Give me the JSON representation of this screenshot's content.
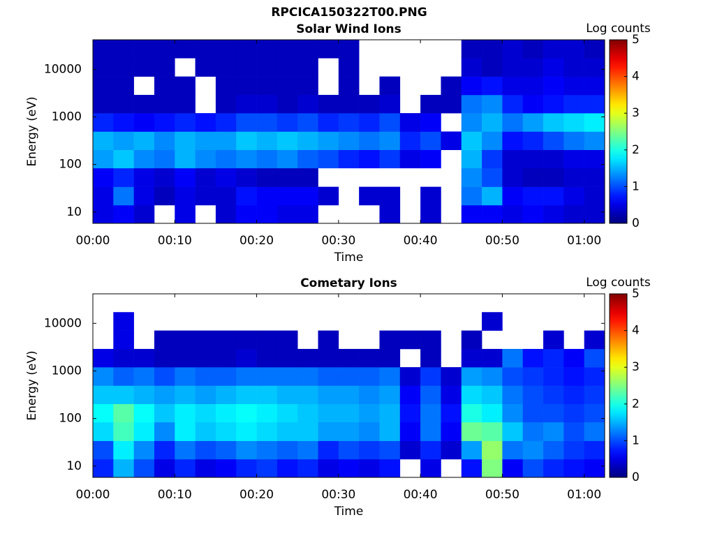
{
  "title": "RPCICA150322T00.PNG",
  "chart_data": [
    {
      "type": "heatmap",
      "title": "Solar Wind Ions",
      "xlabel": "Time",
      "ylabel": "Energy (eV)",
      "log_y": true,
      "colormap": "jet",
      "colorbar_label": "Log counts",
      "clim": [
        0,
        5
      ],
      "cticks": [
        0,
        1,
        2,
        3,
        4,
        5
      ],
      "xlim": [
        0,
        62.5
      ],
      "ylim": [
        5.8,
        41700
      ],
      "xticks": [
        {
          "value": 0,
          "label": "00:00"
        },
        {
          "value": 10,
          "label": "00:10"
        },
        {
          "value": 20,
          "label": "00:20"
        },
        {
          "value": 30,
          "label": "00:30"
        },
        {
          "value": 40,
          "label": "00:40"
        },
        {
          "value": 50,
          "label": "00:50"
        },
        {
          "value": 60,
          "label": "01:00"
        }
      ],
      "yticks": [
        10,
        100,
        1000,
        10000
      ],
      "xbins": [
        0,
        2.5,
        5,
        7.5,
        10,
        12.5,
        15,
        17.5,
        20,
        22.5,
        25,
        27.5,
        30,
        32.5,
        35,
        37.5,
        40,
        42.5,
        45,
        47.5,
        50,
        52.5,
        55,
        57.5,
        60,
        62.5
      ],
      "ybins": [
        5.8,
        14,
        34,
        84,
        203,
        493,
        1200,
        2900,
        7060,
        17200,
        41700
      ],
      "z": [
        [
          0.5,
          0.6,
          0.4,
          null,
          0.5,
          null,
          0.4,
          0.6,
          0.6,
          0.5,
          0.5,
          null,
          null,
          null,
          0.4,
          null,
          0.4,
          null,
          0.6,
          0.6,
          0.5,
          0.6,
          0.5,
          0.4,
          0.4
        ],
        [
          0.5,
          1.2,
          0.5,
          0.3,
          0.5,
          0.4,
          0.4,
          0.7,
          0.6,
          0.6,
          0.6,
          0.4,
          null,
          0.4,
          0.4,
          null,
          0.4,
          null,
          1.2,
          1.5,
          0.6,
          0.7,
          0.7,
          0.5,
          0.4
        ],
        [
          0.6,
          0.8,
          0.5,
          0.4,
          0.6,
          0.4,
          0.5,
          0.4,
          0.3,
          0.3,
          0.3,
          null,
          null,
          null,
          null,
          null,
          null,
          null,
          1.3,
          1.0,
          0.4,
          0.3,
          0.3,
          0.4,
          0.4
        ],
        [
          1.4,
          1.6,
          1.3,
          1.2,
          1.5,
          1.3,
          1.2,
          1.3,
          1.2,
          1.3,
          1.1,
          1.0,
          0.8,
          0.7,
          0.9,
          0.5,
          0.6,
          null,
          1.5,
          0.9,
          0.4,
          0.4,
          0.4,
          0.5,
          0.5
        ],
        [
          1.5,
          1.4,
          1.5,
          1.3,
          1.5,
          1.4,
          1.4,
          1.6,
          1.5,
          1.6,
          1.5,
          1.4,
          1.3,
          1.2,
          1.3,
          0.8,
          1.0,
          0.5,
          1.6,
          1.3,
          0.7,
          0.8,
          1.0,
          1.2,
          1.3
        ],
        [
          0.8,
          0.7,
          0.6,
          0.7,
          0.8,
          0.7,
          0.8,
          1.0,
          1.0,
          0.9,
          1.0,
          0.8,
          0.9,
          0.8,
          1.0,
          0.5,
          0.6,
          null,
          1.3,
          1.5,
          1.2,
          1.4,
          1.6,
          1.7,
          1.8
        ],
        [
          0.3,
          0.3,
          0.3,
          0.3,
          0.3,
          null,
          0.3,
          0.4,
          0.4,
          0.3,
          0.4,
          0.3,
          0.3,
          0.3,
          0.4,
          null,
          0.3,
          0.3,
          1.2,
          1.3,
          0.8,
          0.6,
          0.7,
          0.8,
          0.8
        ],
        [
          0.3,
          0.3,
          null,
          0.3,
          0.3,
          null,
          0.3,
          0.3,
          0.3,
          0.3,
          0.3,
          null,
          0.3,
          null,
          0.3,
          null,
          null,
          0.3,
          0.6,
          0.7,
          0.5,
          0.5,
          0.6,
          0.5,
          0.5
        ],
        [
          0.3,
          0.3,
          0.3,
          0.3,
          null,
          0.3,
          0.3,
          0.3,
          0.3,
          0.3,
          0.3,
          null,
          0.3,
          null,
          null,
          null,
          null,
          null,
          0.4,
          0.3,
          0.4,
          0.4,
          0.5,
          0.4,
          0.4
        ],
        [
          0.3,
          0.3,
          0.3,
          0.3,
          0.3,
          0.3,
          0.3,
          0.3,
          0.3,
          0.3,
          0.3,
          0.3,
          0.3,
          null,
          null,
          null,
          null,
          null,
          0.3,
          0.3,
          0.4,
          0.3,
          0.4,
          0.4,
          0.3
        ]
      ]
    },
    {
      "type": "heatmap",
      "title": "Cometary Ions",
      "xlabel": "Time",
      "ylabel": "Energy (eV)",
      "log_y": true,
      "colormap": "jet",
      "colorbar_label": "Log counts",
      "clim": [
        0,
        5
      ],
      "cticks": [
        0,
        1,
        2,
        3,
        4,
        5
      ],
      "xlim": [
        0,
        62.5
      ],
      "ylim": [
        5.8,
        41700
      ],
      "xticks": [
        {
          "value": 0,
          "label": "00:00"
        },
        {
          "value": 10,
          "label": "00:10"
        },
        {
          "value": 20,
          "label": "00:20"
        },
        {
          "value": 30,
          "label": "00:30"
        },
        {
          "value": 40,
          "label": "00:40"
        },
        {
          "value": 50,
          "label": "00:50"
        },
        {
          "value": 60,
          "label": "01:00"
        }
      ],
      "yticks": [
        10,
        100,
        1000,
        10000
      ],
      "xbins": [
        0,
        2.5,
        5,
        7.5,
        10,
        12.5,
        15,
        17.5,
        20,
        22.5,
        25,
        27.5,
        30,
        32.5,
        35,
        37.5,
        40,
        42.5,
        45,
        47.5,
        50,
        52.5,
        55,
        57.5,
        60,
        62.5
      ],
      "ybins": [
        5.8,
        14,
        34,
        84,
        203,
        493,
        1200,
        2900,
        7060,
        17200,
        41700
      ],
      "z": [
        [
          0.8,
          1.5,
          1.0,
          0.5,
          0.8,
          0.5,
          0.6,
          0.8,
          0.9,
          0.7,
          0.8,
          0.5,
          0.6,
          0.5,
          0.7,
          null,
          0.5,
          null,
          0.7,
          2.5,
          0.6,
          1.0,
          0.8,
          0.7,
          0.6
        ],
        [
          1.0,
          1.8,
          1.3,
          0.8,
          1.2,
          1.0,
          1.1,
          1.3,
          1.2,
          1.1,
          1.2,
          0.8,
          1.0,
          0.9,
          1.0,
          0.4,
          0.8,
          0.4,
          1.4,
          2.6,
          1.2,
          1.3,
          1.1,
          0.9,
          0.8
        ],
        [
          1.7,
          2.2,
          1.8,
          1.3,
          1.8,
          1.6,
          1.7,
          1.8,
          1.7,
          1.6,
          1.6,
          1.4,
          1.4,
          1.3,
          1.5,
          0.6,
          1.2,
          0.6,
          2.4,
          2.3,
          1.6,
          1.2,
          1.3,
          1.0,
          1.2
        ],
        [
          1.9,
          2.3,
          1.9,
          1.6,
          1.8,
          1.7,
          1.8,
          1.9,
          1.8,
          1.7,
          1.6,
          1.5,
          1.5,
          1.4,
          1.5,
          0.7,
          1.2,
          0.7,
          2.0,
          1.8,
          1.3,
          1.0,
          1.0,
          0.9,
          1.0
        ],
        [
          1.6,
          1.6,
          1.5,
          1.4,
          1.5,
          1.4,
          1.5,
          1.6,
          1.6,
          1.5,
          1.5,
          1.4,
          1.4,
          1.3,
          1.4,
          0.6,
          1.1,
          0.5,
          1.7,
          1.6,
          1.2,
          1.0,
          0.9,
          0.8,
          0.9
        ],
        [
          1.3,
          1.1,
          1.2,
          1.0,
          1.2,
          1.1,
          1.1,
          1.2,
          1.2,
          1.2,
          1.2,
          1.1,
          1.1,
          1.1,
          1.2,
          0.4,
          0.9,
          0.4,
          1.4,
          1.3,
          1.0,
          0.9,
          0.8,
          0.7,
          0.8
        ],
        [
          0.5,
          0.4,
          0.4,
          0.3,
          0.3,
          0.3,
          0.3,
          0.4,
          0.3,
          0.3,
          0.3,
          0.3,
          0.3,
          0.3,
          0.3,
          null,
          0.3,
          null,
          0.4,
          0.4,
          1.2,
          0.7,
          0.8,
          0.6,
          1.0
        ],
        [
          null,
          0.5,
          null,
          0.3,
          0.3,
          0.3,
          0.3,
          0.3,
          0.3,
          0.3,
          null,
          0.3,
          null,
          null,
          0.3,
          0.3,
          0.3,
          null,
          0.3,
          null,
          null,
          null,
          0.4,
          null,
          0.4
        ],
        [
          null,
          0.5,
          null,
          null,
          null,
          null,
          null,
          null,
          null,
          null,
          null,
          null,
          null,
          null,
          null,
          null,
          null,
          null,
          null,
          0.4,
          null,
          null,
          null,
          null,
          null
        ],
        [
          null,
          null,
          null,
          null,
          null,
          null,
          null,
          null,
          null,
          null,
          null,
          null,
          null,
          null,
          null,
          null,
          null,
          null,
          null,
          null,
          null,
          null,
          null,
          null,
          null
        ]
      ]
    }
  ]
}
